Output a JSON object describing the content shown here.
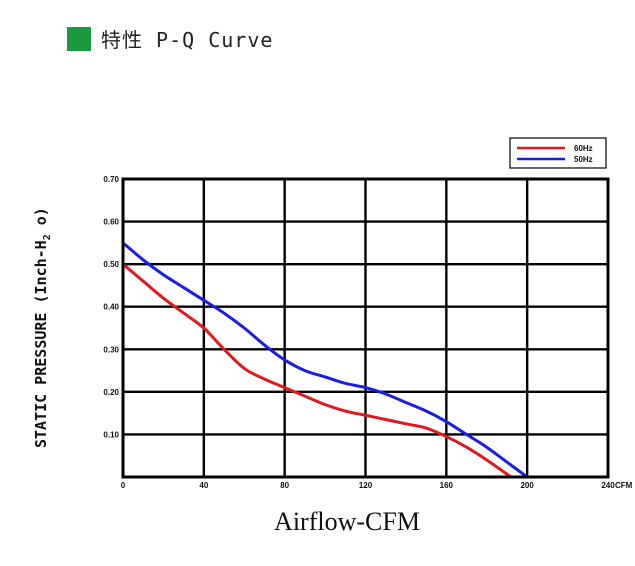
{
  "header": {
    "title": "特性 P-Q Curve",
    "marker_color": "#1a9a3c"
  },
  "chart_data": {
    "type": "line",
    "title": "",
    "xlabel": "Airflow-CFM",
    "ylabel_main": "STATIC PRESSURE (Inch-H",
    "ylabel_sub": "2",
    "ylabel_tail": " o)",
    "x_unit": "CFM",
    "xlim": [
      0,
      240
    ],
    "ylim": [
      0,
      0.7
    ],
    "x_ticks": [
      "0",
      "40",
      "80",
      "120",
      "160",
      "200",
      "240"
    ],
    "y_ticks": [
      "0.10",
      "0.20",
      "0.30",
      "0.40",
      "0.50",
      "0.60",
      "0.70"
    ],
    "grid": true,
    "legend_position": "top-right",
    "series": [
      {
        "name": "60Hz",
        "color": "#e0191e",
        "points": [
          [
            0,
            0.5
          ],
          [
            10,
            0.46
          ],
          [
            20,
            0.42
          ],
          [
            30,
            0.385
          ],
          [
            40,
            0.35
          ],
          [
            50,
            0.3
          ],
          [
            60,
            0.255
          ],
          [
            70,
            0.23
          ],
          [
            80,
            0.21
          ],
          [
            90,
            0.19
          ],
          [
            100,
            0.17
          ],
          [
            110,
            0.155
          ],
          [
            120,
            0.145
          ],
          [
            130,
            0.135
          ],
          [
            140,
            0.125
          ],
          [
            150,
            0.115
          ],
          [
            160,
            0.095
          ],
          [
            170,
            0.07
          ],
          [
            180,
            0.04
          ],
          [
            192,
            0.0
          ]
        ]
      },
      {
        "name": "50Hz",
        "color": "#1a1ee0",
        "points": [
          [
            0,
            0.55
          ],
          [
            10,
            0.51
          ],
          [
            20,
            0.475
          ],
          [
            30,
            0.445
          ],
          [
            40,
            0.415
          ],
          [
            50,
            0.385
          ],
          [
            60,
            0.35
          ],
          [
            70,
            0.31
          ],
          [
            80,
            0.275
          ],
          [
            90,
            0.25
          ],
          [
            100,
            0.235
          ],
          [
            110,
            0.22
          ],
          [
            120,
            0.21
          ],
          [
            130,
            0.195
          ],
          [
            140,
            0.175
          ],
          [
            150,
            0.155
          ],
          [
            160,
            0.13
          ],
          [
            170,
            0.1
          ],
          [
            180,
            0.07
          ],
          [
            190,
            0.035
          ],
          [
            200,
            0.0
          ]
        ]
      }
    ]
  }
}
